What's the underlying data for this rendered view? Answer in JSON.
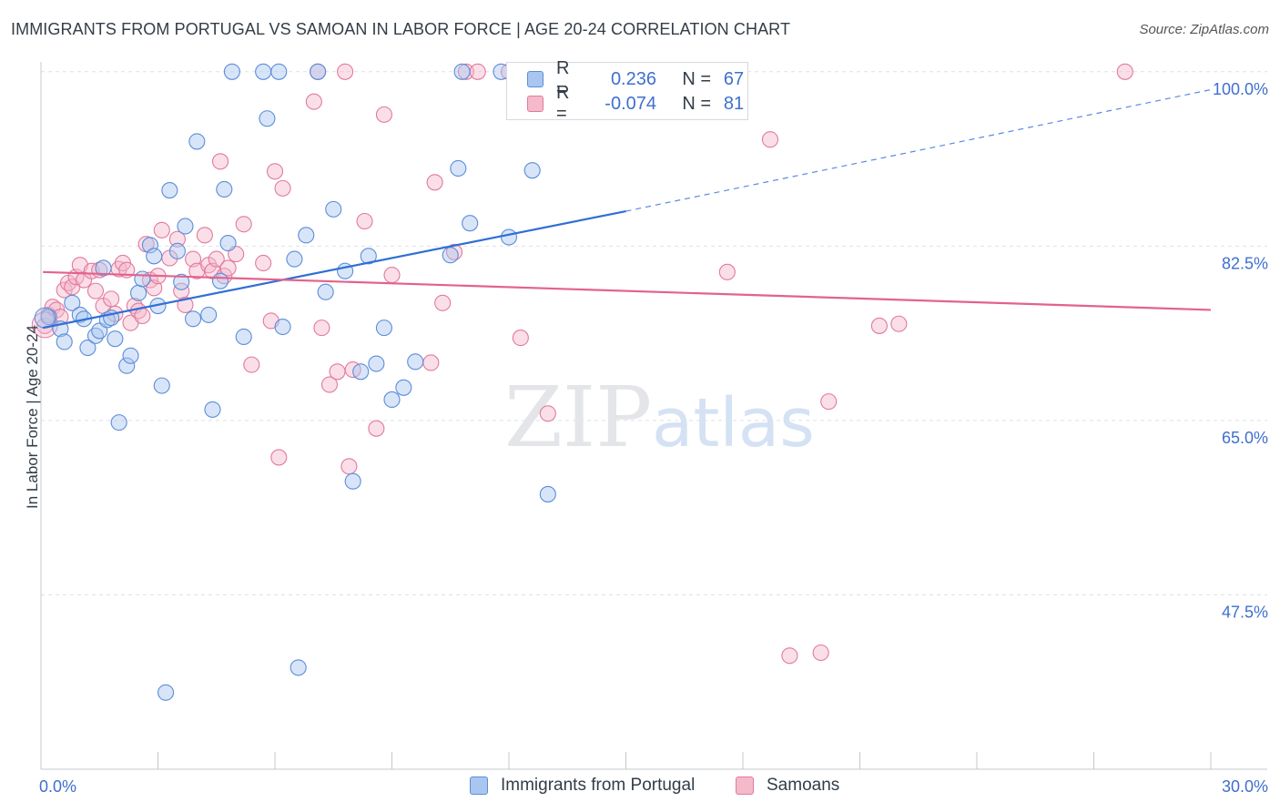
{
  "title": "IMMIGRANTS FROM PORTUGAL VS SAMOAN IN LABOR FORCE | AGE 20-24 CORRELATION CHART",
  "source": "Source: ZipAtlas.com",
  "watermark": {
    "zip": "ZIP",
    "atlas": "atlas"
  },
  "colors": {
    "blue_fill": "#a9c6f0",
    "blue_stroke": "#5b8dd9",
    "blue_line": "#2f6fd6",
    "pink_fill": "#f5b9cc",
    "pink_stroke": "#e27a9c",
    "pink_line": "#e3628d",
    "axis_text": "#3f6fcf",
    "grid": "#dde1e6"
  },
  "legend": {
    "rows": [
      {
        "r_label": "R =",
        "r_value": "0.236",
        "n_label": "N =",
        "n_value": "67"
      },
      {
        "r_label": "R =",
        "r_value": "-0.074",
        "n_label": "N =",
        "n_value": "81"
      }
    ]
  },
  "bottom_legend": [
    "Immigrants from Portugal",
    "Samoans"
  ],
  "chart_data": {
    "type": "scatter",
    "xlabel": "",
    "ylabel": "In Labor Force | Age 20-24",
    "xlim": [
      0,
      30
    ],
    "ylim": [
      30,
      102
    ],
    "x_tick_labels": [
      {
        "value": 0,
        "label": "0.0%"
      },
      {
        "value": 30,
        "label": "30.0%"
      }
    ],
    "y_tick_labels": [
      {
        "value": 100,
        "label": "100.0%"
      },
      {
        "value": 82.5,
        "label": "82.5%"
      },
      {
        "value": 65,
        "label": "65.0%"
      },
      {
        "value": 47.5,
        "label": "47.5%"
      }
    ],
    "grid": true,
    "legend_position": "top-center",
    "series": [
      {
        "name": "Immigrants from Portugal",
        "color": "#a9c6f0",
        "trend": {
          "x": [
            0.05,
            15
          ],
          "y": [
            74.3,
            86.0
          ],
          "dashed_to": [
            30,
            98.2
          ]
        },
        "points": [
          [
            0.2,
            75.4
          ],
          [
            0.5,
            74.2
          ],
          [
            0.6,
            72.9
          ],
          [
            0.8,
            76.8
          ],
          [
            1.0,
            75.6
          ],
          [
            1.1,
            75.2
          ],
          [
            1.2,
            72.3
          ],
          [
            1.4,
            73.5
          ],
          [
            1.5,
            74.0
          ],
          [
            1.6,
            80.3
          ],
          [
            1.7,
            75.1
          ],
          [
            1.8,
            75.3
          ],
          [
            1.9,
            73.2
          ],
          [
            2.0,
            64.8
          ],
          [
            2.2,
            70.5
          ],
          [
            2.3,
            71.5
          ],
          [
            2.5,
            77.8
          ],
          [
            2.6,
            79.2
          ],
          [
            2.8,
            82.6
          ],
          [
            2.9,
            81.5
          ],
          [
            3.0,
            76.5
          ],
          [
            3.1,
            68.5
          ],
          [
            3.2,
            37.7
          ],
          [
            3.3,
            88.1
          ],
          [
            3.5,
            82.0
          ],
          [
            3.6,
            78.9
          ],
          [
            3.7,
            84.5
          ],
          [
            3.9,
            75.2
          ],
          [
            4.0,
            93.0
          ],
          [
            4.3,
            75.6
          ],
          [
            4.4,
            66.1
          ],
          [
            4.6,
            79.0
          ],
          [
            4.7,
            88.2
          ],
          [
            4.8,
            82.8
          ],
          [
            4.9,
            100.0
          ],
          [
            5.2,
            73.4
          ],
          [
            5.7,
            100.0
          ],
          [
            5.8,
            95.3
          ],
          [
            6.1,
            100.0
          ],
          [
            6.2,
            74.4
          ],
          [
            6.5,
            81.2
          ],
          [
            6.6,
            40.2
          ],
          [
            6.8,
            83.6
          ],
          [
            7.1,
            100.0
          ],
          [
            7.3,
            77.9
          ],
          [
            7.5,
            86.2
          ],
          [
            7.8,
            80.0
          ],
          [
            8.0,
            58.9
          ],
          [
            8.2,
            69.9
          ],
          [
            8.4,
            81.5
          ],
          [
            8.6,
            70.7
          ],
          [
            8.8,
            74.3
          ],
          [
            9.0,
            67.1
          ],
          [
            9.3,
            68.3
          ],
          [
            9.6,
            70.9
          ],
          [
            10.5,
            81.6
          ],
          [
            10.7,
            90.3
          ],
          [
            10.8,
            100.0
          ],
          [
            11.0,
            84.8
          ],
          [
            11.8,
            100.0
          ],
          [
            12.0,
            83.4
          ],
          [
            12.6,
            90.1
          ],
          [
            13.0,
            57.6
          ],
          [
            13.5,
            100.0
          ]
        ]
      },
      {
        "name": "Samoans",
        "color": "#f5b9cc",
        "trend": {
          "x": [
            0.05,
            30
          ],
          "y": [
            79.9,
            76.1
          ]
        },
        "points": [
          [
            0.1,
            74.5
          ],
          [
            0.2,
            75.6
          ],
          [
            0.3,
            76.4
          ],
          [
            0.4,
            76.1
          ],
          [
            0.5,
            75.4
          ],
          [
            0.6,
            78.1
          ],
          [
            0.7,
            78.8
          ],
          [
            0.8,
            78.4
          ],
          [
            0.9,
            79.4
          ],
          [
            1.0,
            80.6
          ],
          [
            1.1,
            79.1
          ],
          [
            1.3,
            80.0
          ],
          [
            1.4,
            78.0
          ],
          [
            1.5,
            80.1
          ],
          [
            1.6,
            76.5
          ],
          [
            1.8,
            77.2
          ],
          [
            1.9,
            75.7
          ],
          [
            2.0,
            80.2
          ],
          [
            2.1,
            80.8
          ],
          [
            2.2,
            80.1
          ],
          [
            2.3,
            74.8
          ],
          [
            2.4,
            76.5
          ],
          [
            2.5,
            76.0
          ],
          [
            2.6,
            75.5
          ],
          [
            2.7,
            82.7
          ],
          [
            2.8,
            79.1
          ],
          [
            2.9,
            78.3
          ],
          [
            3.0,
            79.5
          ],
          [
            3.1,
            84.1
          ],
          [
            3.3,
            81.3
          ],
          [
            3.5,
            83.2
          ],
          [
            3.6,
            78.0
          ],
          [
            3.7,
            76.6
          ],
          [
            3.9,
            81.2
          ],
          [
            4.0,
            80.0
          ],
          [
            4.2,
            83.6
          ],
          [
            4.3,
            80.6
          ],
          [
            4.4,
            80.0
          ],
          [
            4.5,
            81.2
          ],
          [
            4.6,
            91.0
          ],
          [
            4.7,
            79.5
          ],
          [
            4.8,
            80.3
          ],
          [
            5.0,
            81.7
          ],
          [
            5.2,
            84.7
          ],
          [
            5.4,
            70.6
          ],
          [
            5.7,
            80.8
          ],
          [
            5.9,
            75.0
          ],
          [
            6.0,
            90.0
          ],
          [
            6.1,
            61.3
          ],
          [
            6.2,
            88.3
          ],
          [
            7.0,
            97.0
          ],
          [
            7.1,
            100.0
          ],
          [
            7.2,
            74.3
          ],
          [
            7.4,
            68.6
          ],
          [
            7.6,
            69.9
          ],
          [
            7.8,
            100.0
          ],
          [
            7.9,
            60.4
          ],
          [
            8.0,
            70.1
          ],
          [
            8.3,
            85.0
          ],
          [
            8.6,
            64.2
          ],
          [
            8.8,
            95.7
          ],
          [
            9.0,
            79.6
          ],
          [
            10.0,
            70.8
          ],
          [
            10.1,
            88.9
          ],
          [
            10.3,
            76.8
          ],
          [
            10.6,
            81.9
          ],
          [
            10.9,
            100.0
          ],
          [
            11.2,
            100.0
          ],
          [
            12.0,
            100.0
          ],
          [
            12.3,
            73.3
          ],
          [
            13.0,
            65.7
          ],
          [
            15.0,
            100.0
          ],
          [
            17.6,
            79.9
          ],
          [
            18.7,
            93.2
          ],
          [
            19.2,
            41.4
          ],
          [
            20.0,
            41.7
          ],
          [
            20.2,
            66.9
          ],
          [
            21.5,
            74.5
          ],
          [
            22.0,
            74.7
          ],
          [
            27.8,
            100.0
          ]
        ]
      }
    ]
  }
}
